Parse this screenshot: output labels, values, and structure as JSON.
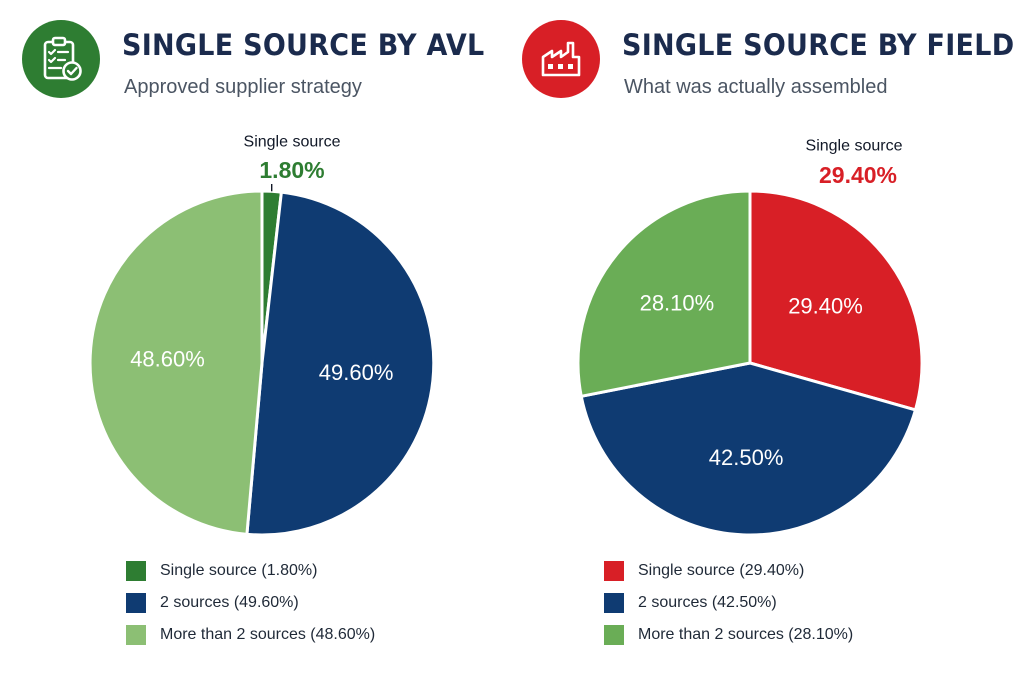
{
  "colors": {
    "dark_green": "#2e7d32",
    "navy": "#0f3b72",
    "light_green": "#8cbf74",
    "mid_green": "#6aad56",
    "red": "#d81f26"
  },
  "chart_data": [
    {
      "type": "pie",
      "title": "SINGLE SOURCE BY AVL",
      "subtitle": "Approved supplier strategy",
      "icon": "clipboard-checklist-icon",
      "badge_color": "#2e7d32",
      "callout": {
        "label": "Single source",
        "value": "1.80%",
        "color": "#2e7d32"
      },
      "slices": [
        {
          "label": "Single source",
          "value": 1.8,
          "display": "",
          "color": "#2e7d32",
          "legend": "Single source (1.80%)"
        },
        {
          "label": "2 sources",
          "value": 49.6,
          "display": "49.60%",
          "color": "#0f3b72",
          "legend": "2 sources (49.60%)"
        },
        {
          "label": "More than 2 sources",
          "value": 48.6,
          "display": "48.60%",
          "color": "#8cbf74",
          "legend": "More than 2 sources (48.60%)"
        }
      ]
    },
    {
      "type": "pie",
      "title": "SINGLE SOURCE BY FIELD",
      "subtitle": "What was actually assembled",
      "icon": "factory-icon",
      "badge_color": "#d81f26",
      "callout": {
        "label": "Single source",
        "value": "29.40%",
        "color": "#d81f26"
      },
      "slices": [
        {
          "label": "Single source",
          "value": 29.4,
          "display": "29.40%",
          "color": "#d81f26",
          "legend": "Single source (29.40%)"
        },
        {
          "label": "2 sources",
          "value": 42.5,
          "display": "42.50%",
          "color": "#0f3b72",
          "legend": "2 sources (42.50%)"
        },
        {
          "label": "More than 2 sources",
          "value": 28.1,
          "display": "28.10%",
          "color": "#6aad56",
          "legend": "More than 2 sources (28.10%)"
        }
      ]
    }
  ]
}
